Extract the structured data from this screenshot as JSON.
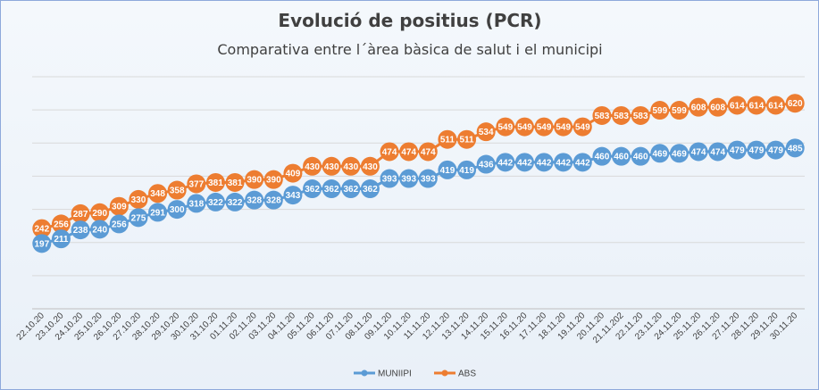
{
  "chart_data": {
    "type": "line",
    "title": "Evolució de positius (PCR)",
    "subtitle": "Comparativa entre l´àrea bàsica de salut i el municipi",
    "xlabel": "",
    "ylabel": "",
    "ylim": [
      0,
      700
    ],
    "grid": true,
    "legend_position": "bottom",
    "categories": [
      "22.10.20",
      "23.10.20",
      "24.10.20",
      "25.10.20",
      "26.10.20",
      "27.10.20",
      "28.10.20",
      "29.10.20",
      "30.10.20",
      "31.10.20",
      "01.11.20",
      "02.11.20",
      "03.11.20",
      "04.11.20",
      "05.11.20",
      "06.11.20",
      "07.11.20",
      "08.11.20",
      "09.11.20",
      "10.11.20",
      "11.11.20",
      "12.11.20",
      "13.11.20",
      "14.11.20",
      "15.11.20",
      "16.11.20",
      "17.11.20",
      "18.11.20",
      "19.11.20",
      "20.11.20",
      "21.11.202",
      "22.11.20",
      "23.11.20",
      "24.11.20",
      "25.11.20",
      "26.11.20",
      "27.11.20",
      "28.11.20",
      "29.11.20",
      "30.11.20"
    ],
    "series": [
      {
        "name": "MUNIIPI",
        "color": "#5b9bd5",
        "values": [
          197,
          211,
          238,
          240,
          256,
          275,
          291,
          300,
          318,
          322,
          322,
          328,
          328,
          343,
          362,
          362,
          362,
          362,
          393,
          393,
          393,
          419,
          419,
          436,
          442,
          442,
          442,
          442,
          442,
          460,
          460,
          460,
          469,
          469,
          474,
          474,
          479,
          479,
          479,
          485
        ]
      },
      {
        "name": "ABS",
        "color": "#ed7d31",
        "values": [
          242,
          256,
          287,
          290,
          309,
          330,
          348,
          358,
          377,
          381,
          381,
          390,
          390,
          409,
          430,
          430,
          430,
          430,
          474,
          474,
          474,
          511,
          511,
          534,
          549,
          549,
          549,
          549,
          549,
          583,
          583,
          583,
          599,
          599,
          608,
          608,
          614,
          614,
          614,
          620
        ]
      }
    ]
  }
}
